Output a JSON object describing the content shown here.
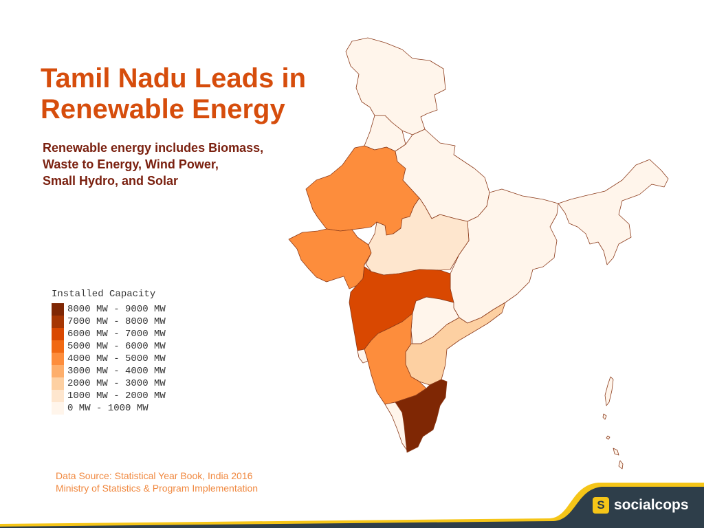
{
  "title_lines": [
    "Tamil Nadu Leads in",
    "Renewable Energy"
  ],
  "subtitle_lines": [
    "Renewable energy includes Biomass,",
    "Waste to Energy, Wind Power,",
    "Small Hydro, and Solar"
  ],
  "legend": {
    "title": "Installed Capacity",
    "items": [
      {
        "label": "8000 MW - 9000 MW",
        "color": "#7f2704"
      },
      {
        "label": "7000 MW - 8000 MW",
        "color": "#a63603"
      },
      {
        "label": "6000 MW - 7000 MW",
        "color": "#d94801"
      },
      {
        "label": "5000 MW - 6000 MW",
        "color": "#f16913"
      },
      {
        "label": "4000 MW - 5000 MW",
        "color": "#fd8d3c"
      },
      {
        "label": "3000 MW - 4000 MW",
        "color": "#fdae6b"
      },
      {
        "label": "2000 MW - 3000 MW",
        "color": "#fdd0a2"
      },
      {
        "label": "1000 MW - 2000 MW",
        "color": "#fee6ce"
      },
      {
        "label": "0 MW - 1000 MW",
        "color": "#fff5eb"
      }
    ]
  },
  "regions": [
    {
      "name": "Tamil Nadu",
      "bin": "8000 MW - 9000 MW"
    },
    {
      "name": "Maharashtra",
      "bin": "6000 MW - 7000 MW"
    },
    {
      "name": "Gujarat",
      "bin": "4000 MW - 5000 MW"
    },
    {
      "name": "Rajasthan",
      "bin": "4000 MW - 5000 MW"
    },
    {
      "name": "Karnataka",
      "bin": "4000 MW - 5000 MW"
    },
    {
      "name": "Andhra Pradesh",
      "bin": "2000 MW - 3000 MW"
    },
    {
      "name": "Madhya Pradesh",
      "bin": "1000 MW - 2000 MW"
    },
    {
      "name": "Telangana",
      "bin": "0 MW - 1000 MW"
    },
    {
      "name": "Kerala",
      "bin": "0 MW - 1000 MW"
    },
    {
      "name": "Other states",
      "bin": "0 MW - 1000 MW"
    }
  ],
  "source_lines": [
    "Data Source: Statistical Year Book, India 2016",
    "Ministry of Statistics & Program Implementation"
  ],
  "brand": {
    "badge": "S",
    "name": "socialcops"
  },
  "colors": {
    "title": "#d64d0c",
    "subtitle": "#7a200f",
    "source": "#f0883f",
    "footer_bg": "#2e3e4a",
    "footer_accent": "#f5c518",
    "border": "#8b3a1a"
  }
}
